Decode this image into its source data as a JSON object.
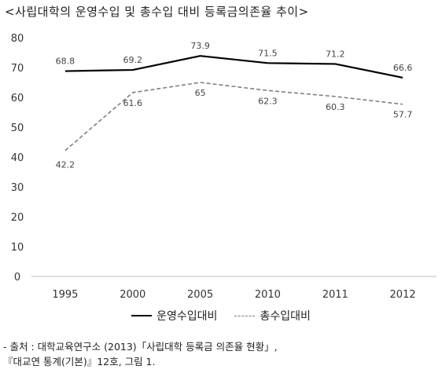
{
  "title": "<사립대학의 운영수입 및 총수입 대비 등록금의존율 추이>",
  "source": {
    "line1": "- 출처 : 대학교육연구소 (2013)「사립대학 등록금 의존율 현황」,",
    "line2": "『대교연 통계(기본)』12호, 그림 1."
  },
  "chart_data": {
    "type": "line",
    "title": "<사립대학의 운영수입 및 총수입 대비 등록금의존율 추이>",
    "categories": [
      "1995",
      "2000",
      "2005",
      "2010",
      "2011",
      "2012"
    ],
    "series": [
      {
        "name": "운영수입대비",
        "values": [
          68.8,
          69.2,
          73.9,
          71.5,
          71.2,
          66.6
        ],
        "color": "#000000",
        "style": "solid"
      },
      {
        "name": "총수입대비",
        "values": [
          42.2,
          61.6,
          65,
          62.3,
          60.3,
          57.7
        ],
        "color": "#808080",
        "style": "dashed"
      }
    ],
    "ylim": [
      0,
      80
    ],
    "yticks": [
      "0",
      "10",
      "20",
      "30",
      "40",
      "50",
      "60",
      "70",
      "80"
    ],
    "data_labels": [
      [
        "68.8",
        "69.2",
        "73.9",
        "71.5",
        "71.2",
        "66.6"
      ],
      [
        "42.2",
        "61.6",
        "65",
        "62.3",
        "60.3",
        "57.7"
      ]
    ],
    "grid": false,
    "legend": "bottom"
  }
}
